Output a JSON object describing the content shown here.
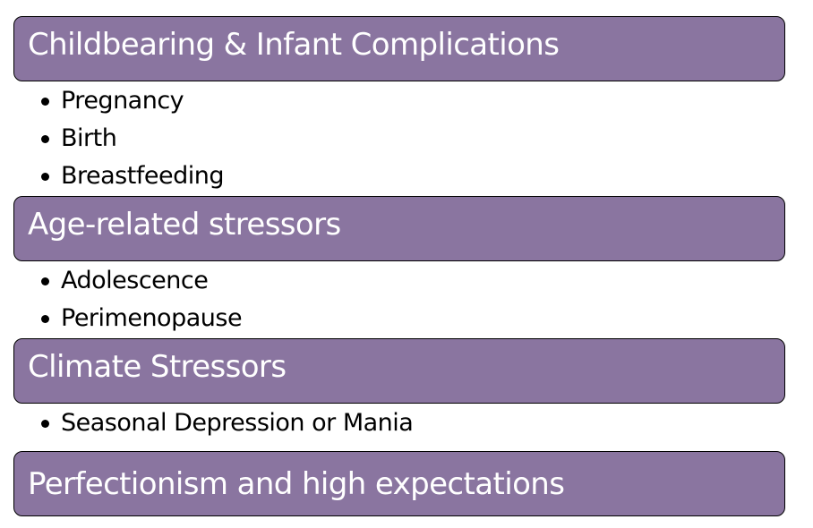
{
  "colors": {
    "header_fill": "#8a75a0",
    "header_border": "#000000",
    "header_text": "#ffffff",
    "bullet_text": "#000000"
  },
  "sections": [
    {
      "title": "Childbearing & Infant Complications",
      "items": [
        "Pregnancy",
        "Birth",
        "Breastfeeding"
      ]
    },
    {
      "title": "Age-related stressors",
      "items": [
        "Adolescence",
        "Perimenopause"
      ]
    },
    {
      "title": "Climate Stressors",
      "items": [
        "Seasonal Depression or Mania"
      ]
    },
    {
      "title": "Perfectionism and high expectations",
      "items": []
    }
  ]
}
